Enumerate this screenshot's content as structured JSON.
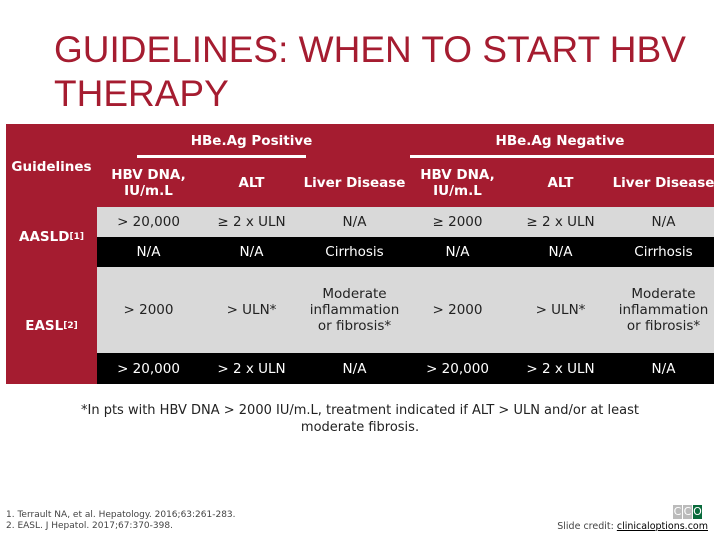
{
  "title": "GUIDELINES: WHEN TO START HBV THERAPY",
  "table": {
    "group_headers": [
      "HBe.Ag Positive",
      "HBe.Ag Negative"
    ],
    "guidelines_label": "Guidelines",
    "column_headers": [
      "HBV DNA, IU/m.L",
      "ALT",
      "Liver Disease",
      "HBV DNA, IU/m.L",
      "ALT",
      "Liver Disease"
    ],
    "guidelines": [
      {
        "name": "AASLD",
        "ref": "[1]"
      },
      {
        "name": "EASL",
        "ref": "[2]"
      }
    ],
    "rows": [
      [
        "> 20,000",
        "≥ 2 x ULN",
        "N/A",
        "≥ 2000",
        "≥ 2 x ULN",
        "N/A"
      ],
      [
        "N/A",
        "N/A",
        "Cirrhosis",
        "N/A",
        "N/A",
        "Cirrhosis"
      ],
      [
        "> 2000",
        "> ULN*",
        "Moderate inflammation or fibrosis*",
        "> 2000",
        "> ULN*",
        "Moderate inflammation or fibrosis*"
      ],
      [
        "> 20,000",
        "> 2 x ULN",
        "N/A",
        "> 20,000",
        "> 2 x ULN",
        "N/A"
      ]
    ]
  },
  "footnote": "*In pts with HBV DNA > 2000 IU/m.L, treatment indicated if ALT > ULN and/or at least moderate fibrosis.",
  "references": [
    "1. Terrault NA, et al. Hepatology. 2016;63:261-283.",
    "2. EASL. J Hepatol. 2017;67:370-398."
  ],
  "credit": {
    "label": "Slide credit:",
    "link": "clinicaloptions.com"
  },
  "logo": {
    "letters": [
      "C",
      "C",
      "O"
    ]
  },
  "colors": {
    "brand": "#a51c30",
    "gray_row": "#d9d9d9",
    "dark_row": "#000000"
  }
}
